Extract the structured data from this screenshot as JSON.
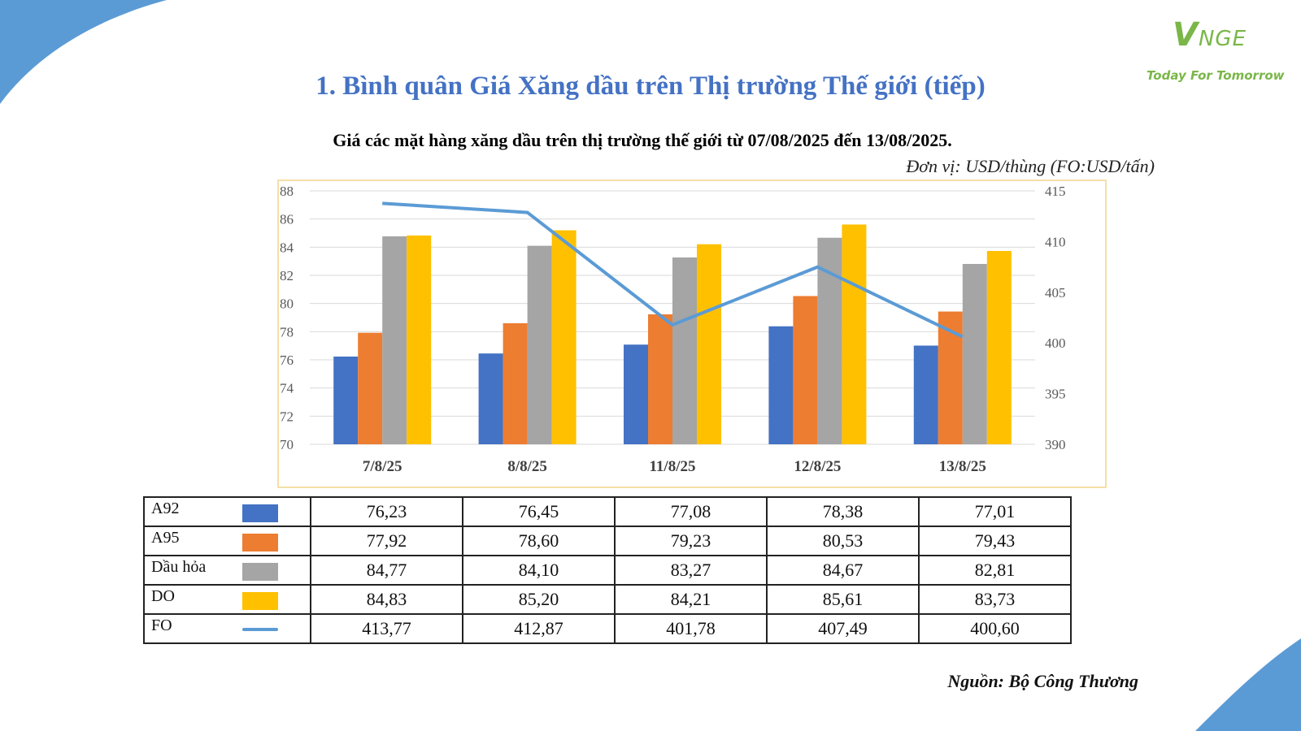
{
  "brand": {
    "logo": "VNGE",
    "tagline": "Today For Tomorrow"
  },
  "title": "1. Bình quân Giá Xăng dầu trên Thị trường Thế giới (tiếp)",
  "subtitle": "Giá các mặt hàng xăng dầu trên thị trường thế giới từ 07/08/2025 đến 13/08/2025.",
  "unit": "Đơn vị: USD/thùng (FO:USD/tấn)",
  "source": "Nguồn: Bộ Công Thương",
  "colors": {
    "title": "#4472c4",
    "a92": "#4472c4",
    "a95": "#ed7d31",
    "dau_hoa": "#a5a5a5",
    "do": "#ffc000",
    "fo": "#5b9bd5",
    "frame": "#f5dfa8",
    "deco": "#5b9bd5"
  },
  "chart_data": {
    "type": "bar",
    "categories": [
      "7/8/25",
      "8/8/25",
      "11/8/25",
      "12/8/25",
      "13/8/25"
    ],
    "ylim": [
      70,
      88
    ],
    "y_ticks": [
      70,
      72,
      74,
      76,
      78,
      80,
      82,
      84,
      86,
      88
    ],
    "y2lim": [
      390,
      415
    ],
    "y2_ticks": [
      390,
      395,
      400,
      405,
      410,
      415
    ],
    "grid": true,
    "series": [
      {
        "name": "A92",
        "type": "bar",
        "axis": "left",
        "color": "#4472c4",
        "values": [
          76.23,
          76.45,
          77.08,
          78.38,
          77.01
        ],
        "labels": [
          "76,23",
          "76,45",
          "77,08",
          "78,38",
          "77,01"
        ]
      },
      {
        "name": "A95",
        "type": "bar",
        "axis": "left",
        "color": "#ed7d31",
        "values": [
          77.92,
          78.6,
          79.23,
          80.53,
          79.43
        ],
        "labels": [
          "77,92",
          "78,60",
          "79,23",
          "80,53",
          "79,43"
        ]
      },
      {
        "name": "Dầu hỏa",
        "type": "bar",
        "axis": "left",
        "color": "#a5a5a5",
        "values": [
          84.77,
          84.1,
          83.27,
          84.67,
          82.81
        ],
        "labels": [
          "84,77",
          "84,10",
          "83,27",
          "84,67",
          "82,81"
        ]
      },
      {
        "name": "DO",
        "type": "bar",
        "axis": "left",
        "color": "#ffc000",
        "values": [
          84.83,
          85.2,
          84.21,
          85.61,
          83.73
        ],
        "labels": [
          "84,83",
          "85,20",
          "84,21",
          "85,61",
          "83,73"
        ]
      },
      {
        "name": "FO",
        "type": "line",
        "axis": "right",
        "color": "#5b9bd5",
        "values": [
          413.77,
          412.87,
          401.78,
          407.49,
          400.6
        ],
        "labels": [
          "413,77",
          "412,87",
          "401,78",
          "407,49",
          "400,60"
        ]
      }
    ]
  }
}
